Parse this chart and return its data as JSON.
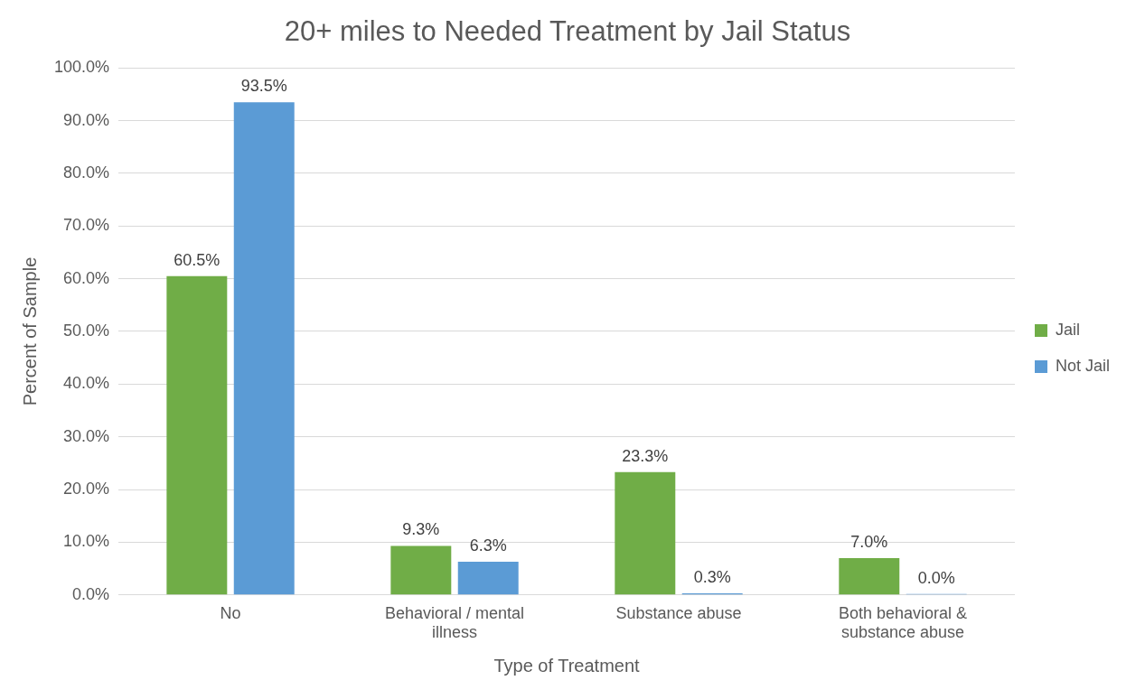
{
  "chart_data": {
    "type": "bar",
    "title": "20+ miles to Needed Treatment by Jail Status",
    "xlabel": "Type of Treatment",
    "ylabel": "Percent of Sample",
    "categories": [
      "No",
      "Behavioral / mental illness",
      "Substance abuse",
      "Both behavioral & substance abuse"
    ],
    "series": [
      {
        "name": "Jail",
        "color": "#70ad47",
        "values": [
          60.5,
          9.3,
          23.3,
          7.0
        ],
        "value_labels": [
          "60.5%",
          "9.3%",
          "23.3%",
          "7.0%"
        ]
      },
      {
        "name": "Not Jail",
        "color": "#5b9bd5",
        "values": [
          93.5,
          6.3,
          0.3,
          0.0
        ],
        "value_labels": [
          "93.5%",
          "6.3%",
          "0.3%",
          "0.0%"
        ]
      }
    ],
    "ylim": [
      0,
      100
    ],
    "yticks": [
      {
        "value": 0,
        "label": "0.0%"
      },
      {
        "value": 10,
        "label": "10.0%"
      },
      {
        "value": 20,
        "label": "20.0%"
      },
      {
        "value": 30,
        "label": "30.0%"
      },
      {
        "value": 40,
        "label": "40.0%"
      },
      {
        "value": 50,
        "label": "50.0%"
      },
      {
        "value": 60,
        "label": "60.0%"
      },
      {
        "value": 70,
        "label": "70.0%"
      },
      {
        "value": 80,
        "label": "80.0%"
      },
      {
        "value": 90,
        "label": "90.0%"
      },
      {
        "value": 100,
        "label": "100.0%"
      }
    ],
    "grid": "y",
    "legend": "right"
  }
}
